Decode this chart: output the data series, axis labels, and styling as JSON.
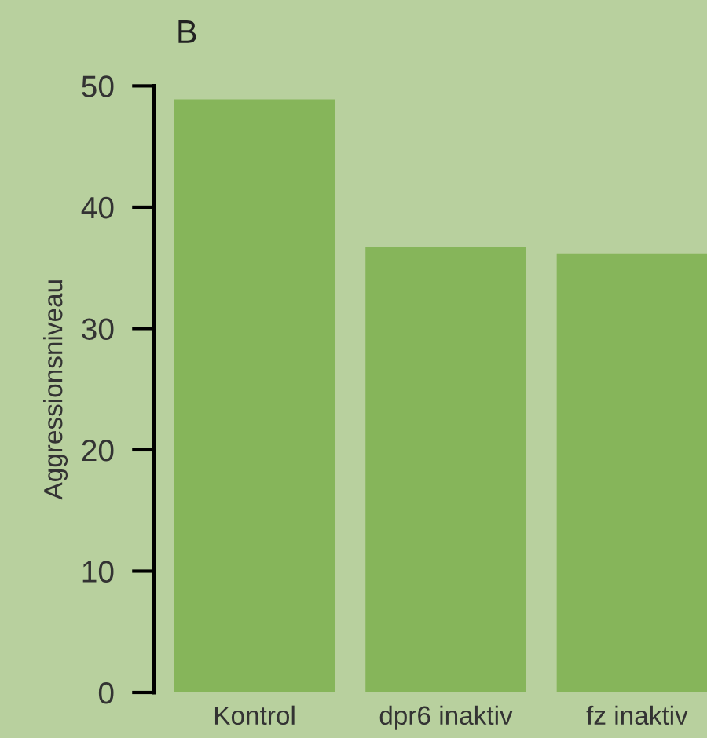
{
  "chart_data": {
    "type": "bar",
    "title": "B",
    "ylabel": "Aggressionsniveau",
    "categories": [
      "Kontrol",
      "dpr6 inaktiv",
      "fz inaktiv"
    ],
    "values": [
      48.9,
      36.7,
      36.2
    ],
    "color": "#86b55a",
    "ylim": [
      0,
      50
    ],
    "yticks": [
      0,
      10,
      20,
      30,
      40,
      50
    ],
    "grid": false,
    "legend": false
  }
}
